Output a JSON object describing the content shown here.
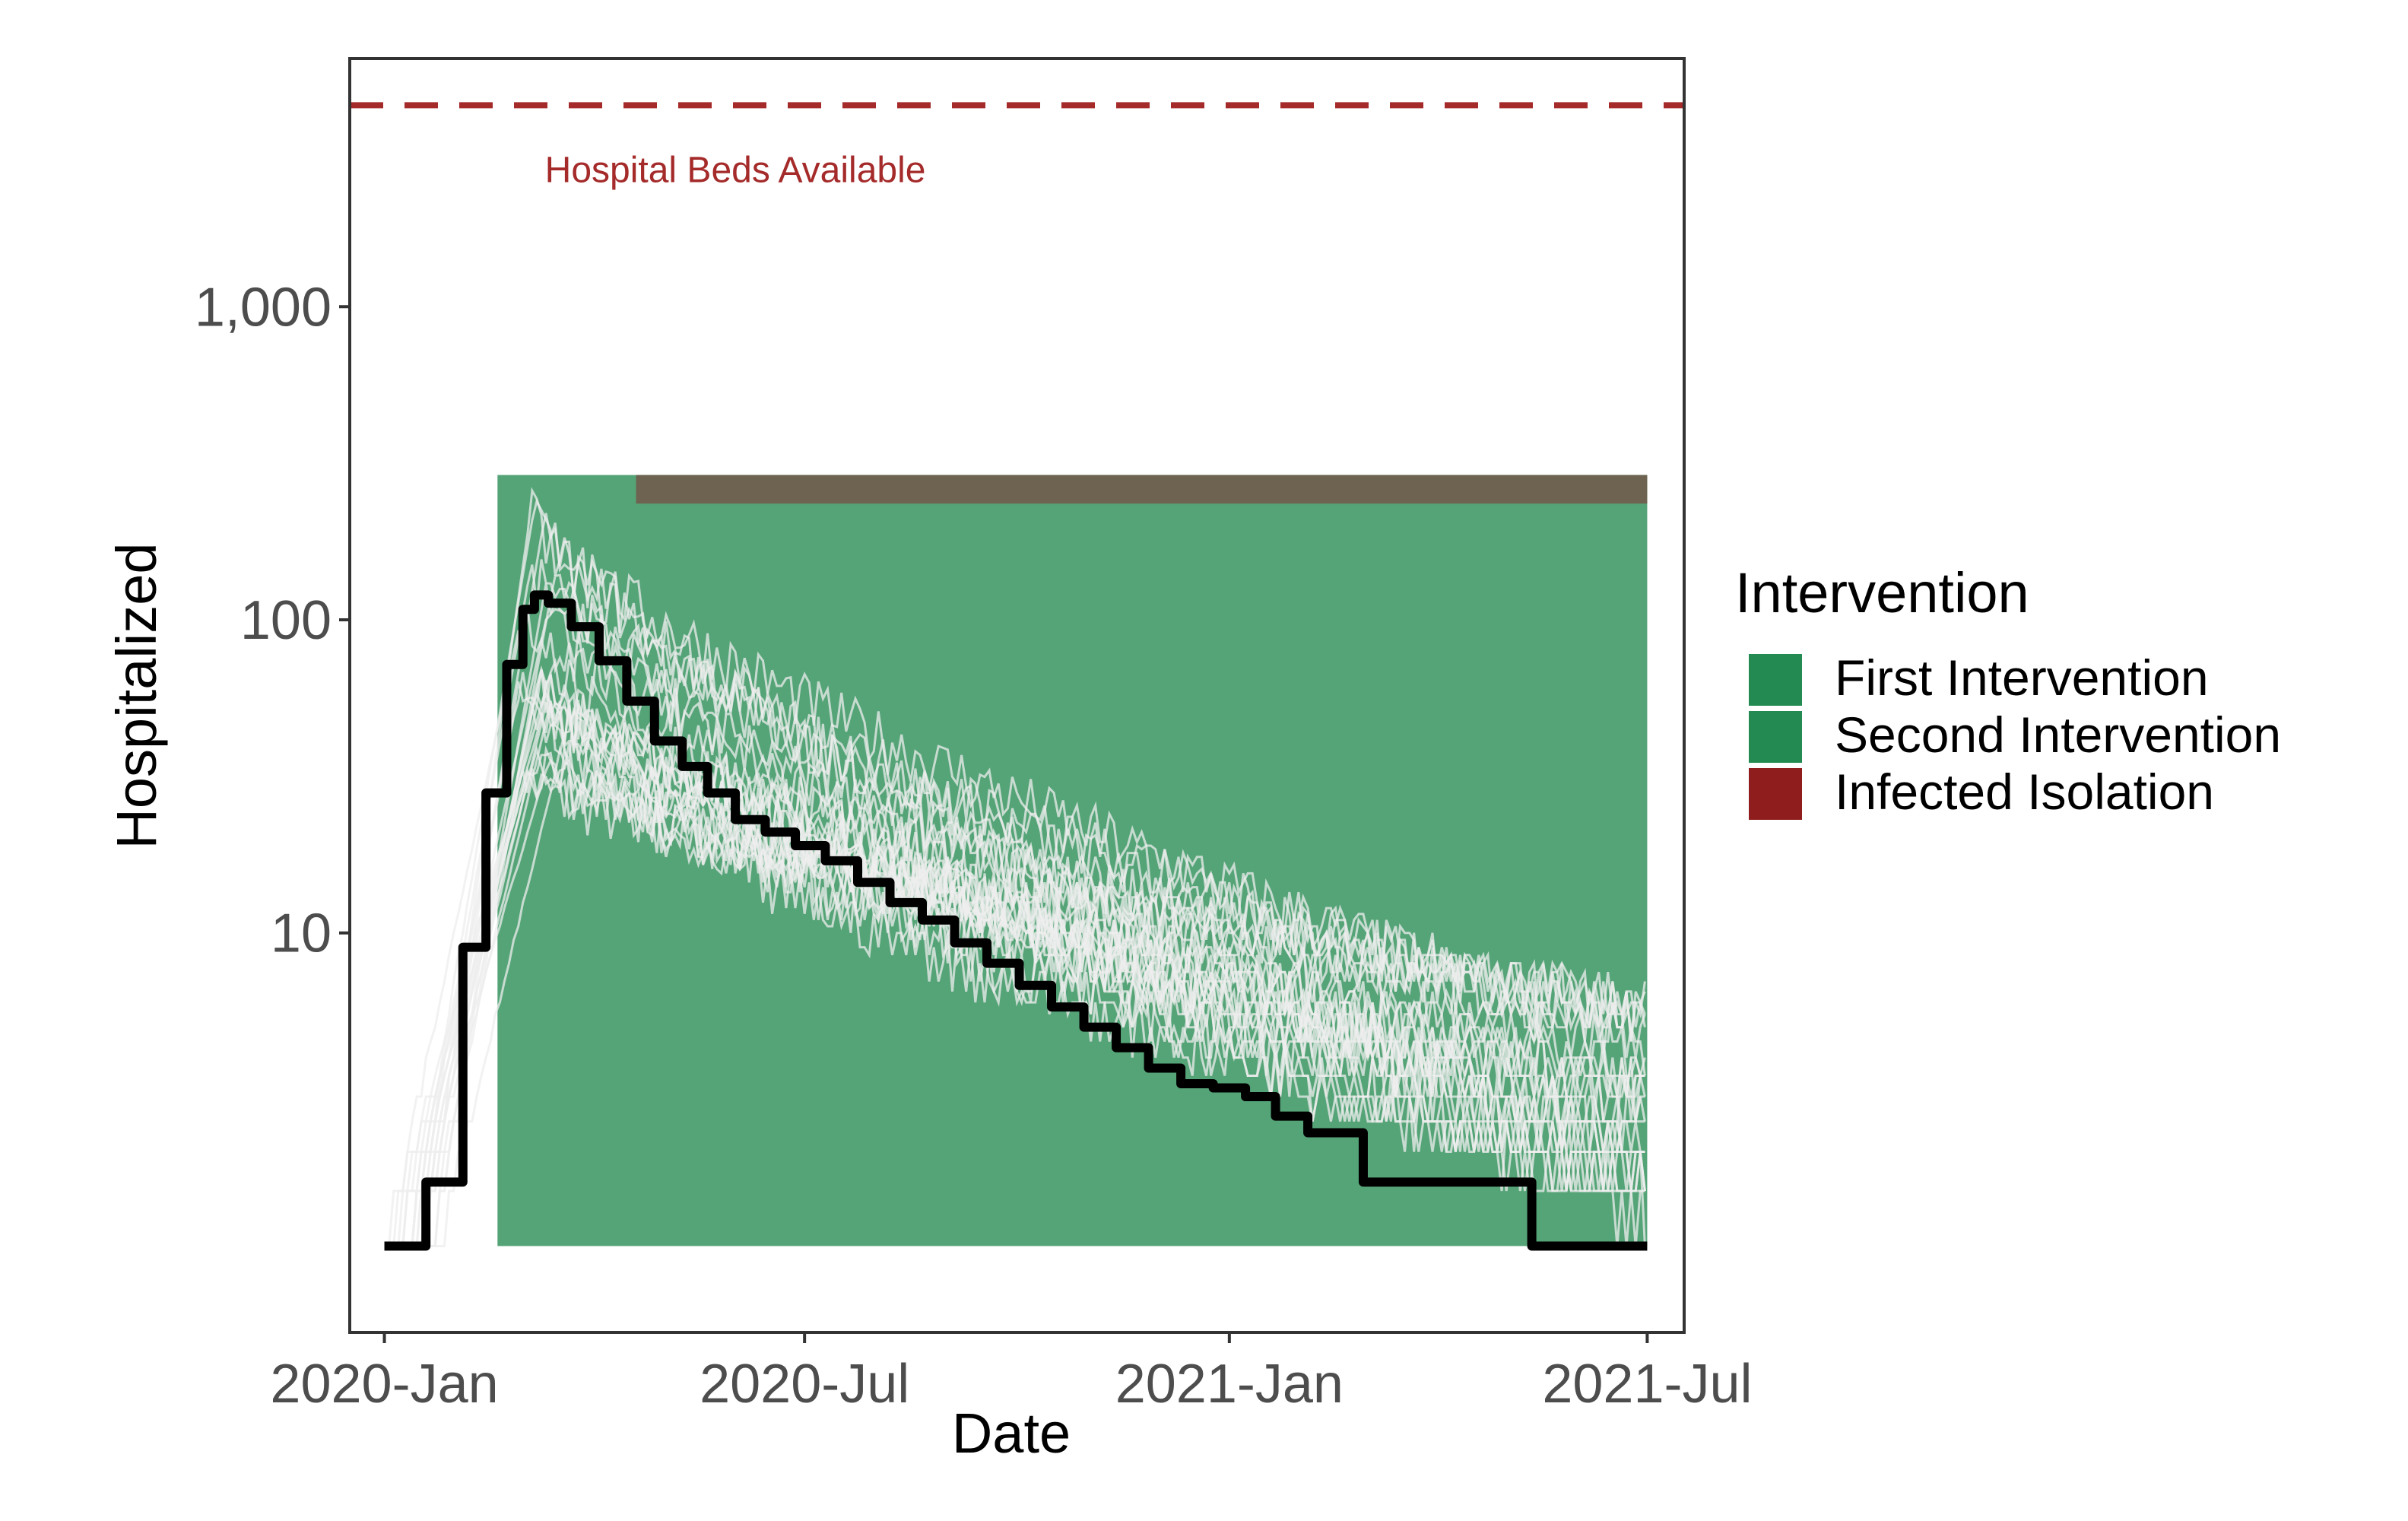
{
  "chart_data": {
    "type": "line",
    "xlabel": "Date",
    "ylabel": "Hospitalized",
    "y_scale": "log10",
    "xlim": [
      "2019-12-17",
      "2021-07-17"
    ],
    "ylim": [
      0.53,
      6200
    ],
    "x_ticks": [
      {
        "date": "2020-01-01",
        "label": "2020-Jan"
      },
      {
        "date": "2020-07-01",
        "label": "2020-Jul"
      },
      {
        "date": "2021-01-01",
        "label": "2021-Jan"
      },
      {
        "date": "2021-07-01",
        "label": "2021-Jul"
      }
    ],
    "y_ticks": [
      {
        "value": 10,
        "label": "10"
      },
      {
        "value": 100,
        "label": "100"
      },
      {
        "value": 1000,
        "label": "1,000"
      }
    ],
    "grid": false,
    "reference_line": {
      "value": 4400,
      "label": "Hospital Beds Available",
      "color": "#a52a2a",
      "style": "dashed"
    },
    "intervention_bands": [
      {
        "name": "First Intervention",
        "start": "2020-02-19",
        "end": "2021-07-01",
        "ymin": 1,
        "ymax": 290,
        "color": "#55a477"
      },
      {
        "name": "Second Intervention",
        "start": "2020-04-19",
        "end": "2021-07-01",
        "ymin": 235,
        "ymax": 290,
        "color": "#6e6350"
      }
    ],
    "legend": {
      "title": "Intervention",
      "position": "right",
      "items": [
        {
          "label": "First Intervention",
          "color": "#238b51"
        },
        {
          "label": "Second Intervention",
          "color": "#238b51"
        },
        {
          "label": "Infected Isolation",
          "color": "#8f1d1d"
        }
      ]
    },
    "median_series": {
      "name": "Median",
      "color": "#000000",
      "points": [
        [
          "2020-01-01",
          1
        ],
        [
          "2020-01-16",
          1
        ],
        [
          "2020-01-19",
          1.6
        ],
        [
          "2020-01-25",
          1.6
        ],
        [
          "2020-02-04",
          9
        ],
        [
          "2020-02-14",
          28
        ],
        [
          "2020-02-23",
          72
        ],
        [
          "2020-03-01",
          108
        ],
        [
          "2020-03-06",
          120
        ],
        [
          "2020-03-12",
          113
        ],
        [
          "2020-03-22",
          95
        ],
        [
          "2020-04-03",
          74
        ],
        [
          "2020-04-15",
          55
        ],
        [
          "2020-04-27",
          41
        ],
        [
          "2020-05-09",
          34
        ],
        [
          "2020-05-20",
          28
        ],
        [
          "2020-06-01",
          23
        ],
        [
          "2020-06-14",
          21
        ],
        [
          "2020-06-27",
          19
        ],
        [
          "2020-07-10",
          17
        ],
        [
          "2020-07-24",
          14.5
        ],
        [
          "2020-08-07",
          12.5
        ],
        [
          "2020-08-21",
          11
        ],
        [
          "2020-09-04",
          9.3
        ],
        [
          "2020-09-18",
          8
        ],
        [
          "2020-10-02",
          6.8
        ],
        [
          "2020-10-16",
          5.8
        ],
        [
          "2020-10-30",
          5
        ],
        [
          "2020-11-13",
          4.3
        ],
        [
          "2020-11-27",
          3.7
        ],
        [
          "2020-12-11",
          3.3
        ],
        [
          "2020-12-25",
          3.2
        ],
        [
          "2021-01-08",
          3
        ],
        [
          "2021-01-21",
          2.6
        ],
        [
          "2021-02-04",
          2.3
        ],
        [
          "2021-02-15",
          2.3
        ],
        [
          "2021-02-28",
          1.6
        ],
        [
          "2021-03-14",
          1.6
        ],
        [
          "2021-04-01",
          1.6
        ],
        [
          "2021-05-05",
          1.6
        ],
        [
          "2021-05-12",
          1.0
        ],
        [
          "2021-06-01",
          1
        ],
        [
          "2021-07-01",
          1
        ]
      ]
    },
    "simulation_series": {
      "name": "Simulations",
      "color": "#eeeeee",
      "count": 24,
      "peak_range": [
        30,
        280
      ],
      "end_range": [
        1,
        6
      ]
    }
  }
}
